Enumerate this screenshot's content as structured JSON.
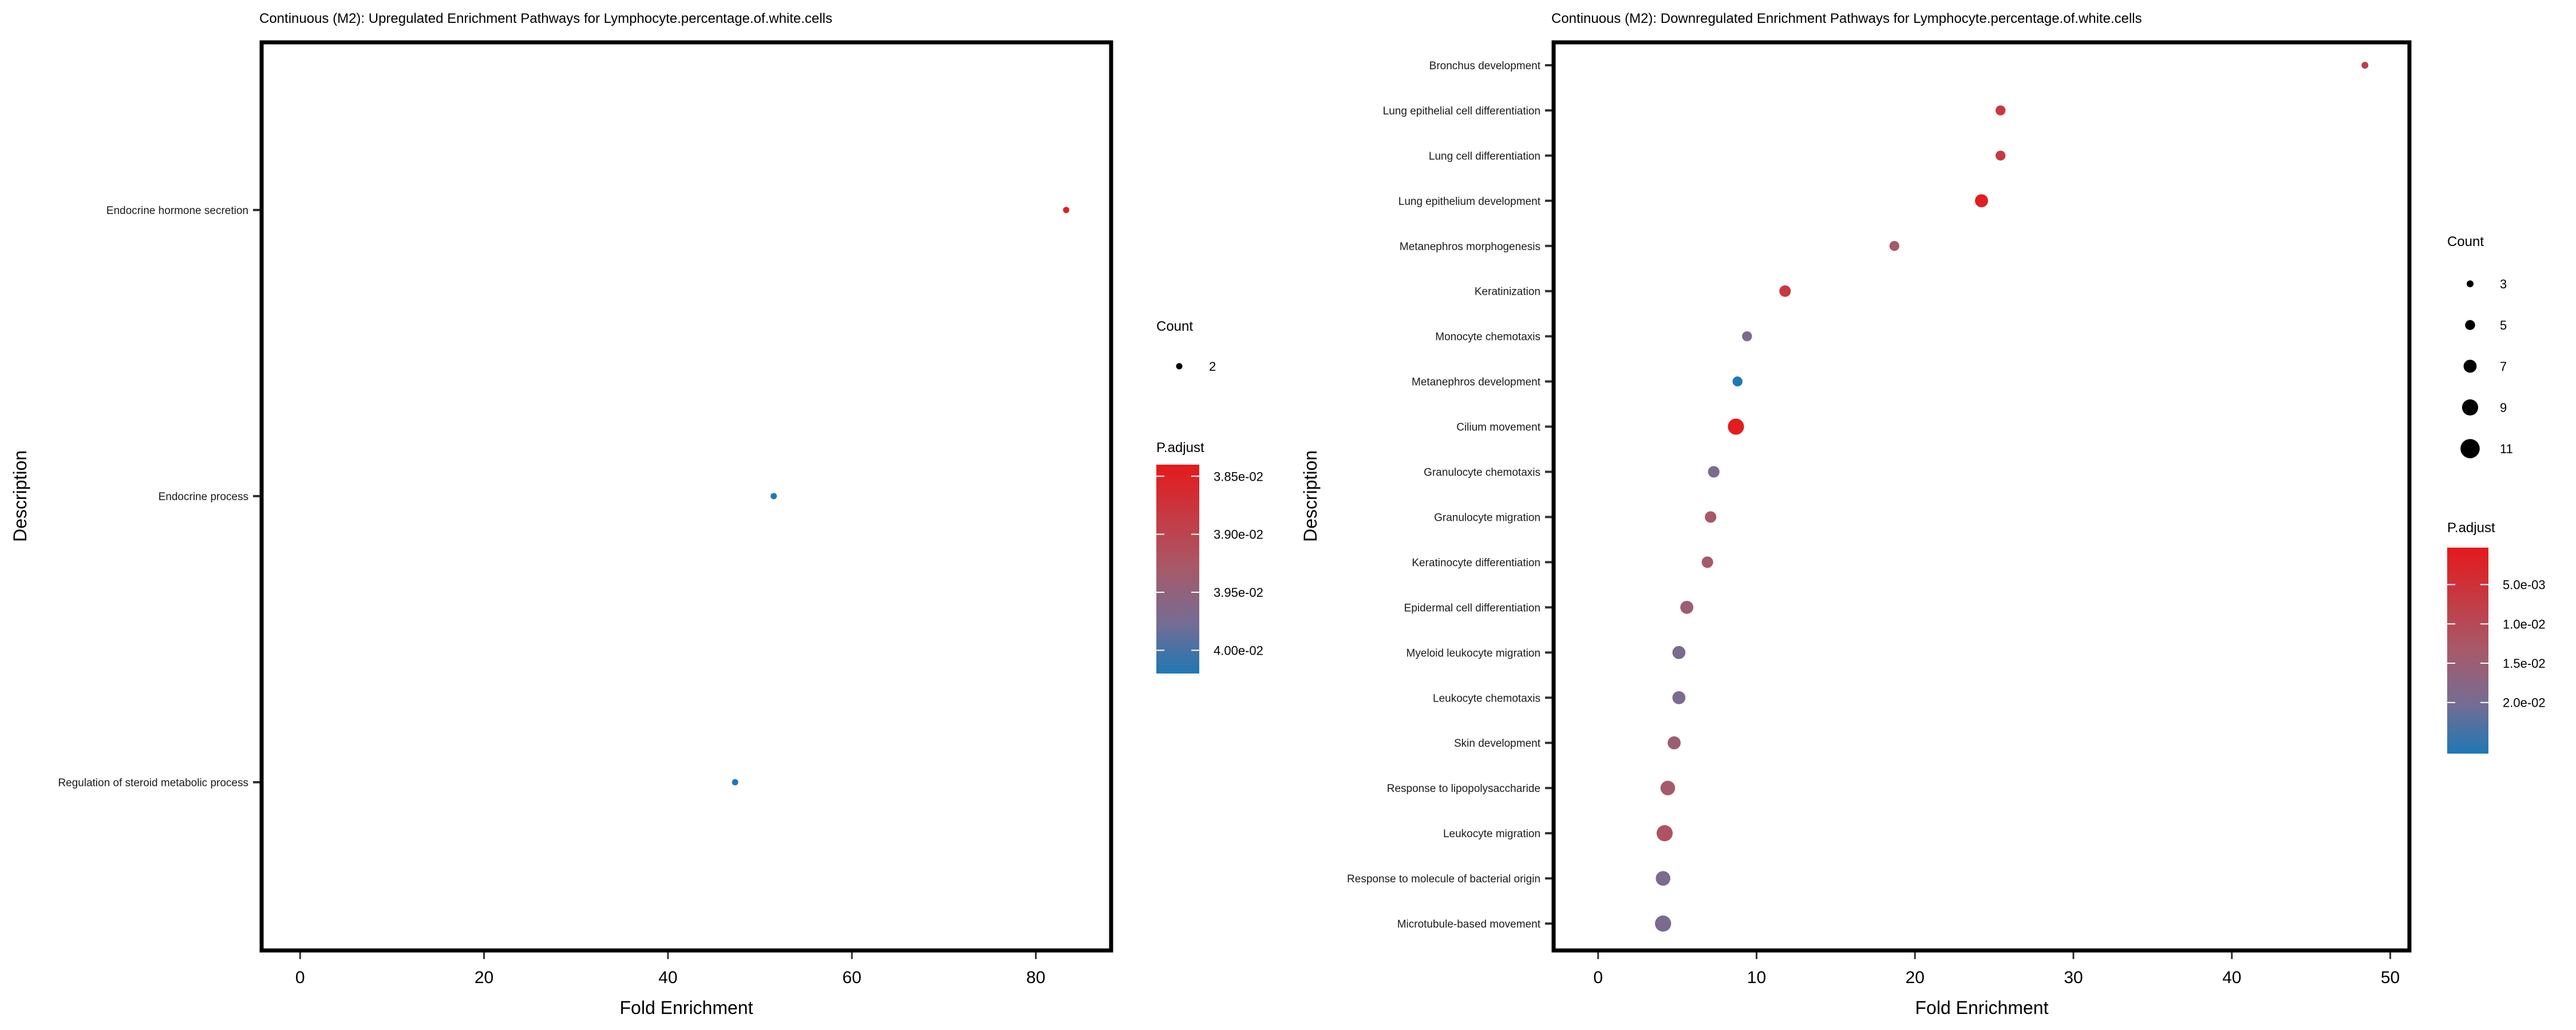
{
  "chart_data": [
    {
      "type": "scatter",
      "title": "Continuous (M2): Upregulated Enrichment Pathways for Lymphocyte.percentage.of.white.cells",
      "xlabel": "Fold Enrichment",
      "ylabel": "Description",
      "xlim": [
        -4,
        88
      ],
      "xticks": [
        0,
        20,
        40,
        60,
        80
      ],
      "xtick_labels": [
        "0",
        "20",
        "40",
        "60",
        "80"
      ],
      "grid": false,
      "categories": [
        "Endocrine hormone secretion",
        "Endocrine process",
        "Regulation of steroid metabolic process"
      ],
      "points": [
        {
          "description": "Endocrine hormone secretion",
          "fold_enrichment": 83.3,
          "count": 2,
          "p_adjust": 0.0385
        },
        {
          "description": "Endocrine process",
          "fold_enrichment": 51.5,
          "count": 2,
          "p_adjust": 0.0402
        },
        {
          "description": "Regulation of steroid metabolic process",
          "fold_enrichment": 47.3,
          "count": 2,
          "p_adjust": 0.0402
        }
      ],
      "size_legend": {
        "title": "Count",
        "values": [
          2
        ],
        "labels": [
          "2"
        ],
        "range": [
          2,
          2
        ]
      },
      "color_legend": {
        "title": "P.adjust",
        "range": [
          0.0384,
          0.0402
        ],
        "ticks": [
          0.0385,
          0.039,
          0.0395,
          0.04
        ],
        "tick_labels": [
          "3.85e-02",
          "3.90e-02",
          "3.95e-02",
          "4.00e-02"
        ],
        "low_color": "#e41a1c",
        "high_color": "#1f78b4"
      },
      "legend_position": "right"
    },
    {
      "type": "scatter",
      "title": "Continuous (M2): Downregulated Enrichment Pathways for Lymphocyte.percentage.of.white.cells",
      "xlabel": "Fold Enrichment",
      "ylabel": "Description",
      "xlim": [
        -2.7,
        51.1
      ],
      "xticks": [
        0,
        10,
        20,
        30,
        40,
        50
      ],
      "xtick_labels": [
        "0",
        "10",
        "20",
        "30",
        "40",
        "50"
      ],
      "grid": false,
      "categories": [
        "Bronchus development",
        "Lung epithelial cell differentiation",
        "Lung cell differentiation",
        "Lung epithelium development",
        "Metanephros morphogenesis",
        "Keratinization",
        "Monocyte chemotaxis",
        "Metanephros development",
        "Cilium movement",
        "Granulocyte chemotaxis",
        "Granulocyte migration",
        "Keratinocyte differentiation",
        "Epidermal cell differentiation",
        "Myeloid leukocyte migration",
        "Leukocyte chemotaxis",
        "Skin development",
        "Response to lipopolysaccharide",
        "Leukocyte migration",
        "Response to molecule of bacterial origin",
        "Microtubule-based movement"
      ],
      "points": [
        {
          "description": "Bronchus development",
          "fold_enrichment": 48.4,
          "count": 3,
          "p_adjust": 0.0075
        },
        {
          "description": "Lung epithelial cell differentiation",
          "fold_enrichment": 25.4,
          "count": 5,
          "p_adjust": 0.0065
        },
        {
          "description": "Lung cell differentiation",
          "fold_enrichment": 25.4,
          "count": 5,
          "p_adjust": 0.0065
        },
        {
          "description": "Lung epithelium development",
          "fold_enrichment": 24.2,
          "count": 7,
          "p_adjust": 0.0008
        },
        {
          "description": "Metanephros morphogenesis",
          "fold_enrichment": 18.7,
          "count": 5,
          "p_adjust": 0.0135
        },
        {
          "description": "Keratinization",
          "fold_enrichment": 11.8,
          "count": 6,
          "p_adjust": 0.0065
        },
        {
          "description": "Monocyte chemotaxis",
          "fold_enrichment": 9.4,
          "count": 5,
          "p_adjust": 0.0195
        },
        {
          "description": "Metanephros development",
          "fold_enrichment": 8.8,
          "count": 5,
          "p_adjust": 0.0265
        },
        {
          "description": "Cilium movement",
          "fold_enrichment": 8.7,
          "count": 9,
          "p_adjust": 0.0008
        },
        {
          "description": "Granulocyte chemotaxis",
          "fold_enrichment": 7.3,
          "count": 6,
          "p_adjust": 0.0195
        },
        {
          "description": "Granulocyte migration",
          "fold_enrichment": 7.1,
          "count": 6,
          "p_adjust": 0.013
        },
        {
          "description": "Keratinocyte differentiation",
          "fold_enrichment": 6.9,
          "count": 6,
          "p_adjust": 0.0135
        },
        {
          "description": "Epidermal cell differentiation",
          "fold_enrichment": 5.6,
          "count": 7,
          "p_adjust": 0.015
        },
        {
          "description": "Myeloid leukocyte migration",
          "fold_enrichment": 5.1,
          "count": 7,
          "p_adjust": 0.0195
        },
        {
          "description": "Leukocyte chemotaxis",
          "fold_enrichment": 5.1,
          "count": 7,
          "p_adjust": 0.0195
        },
        {
          "description": "Skin development",
          "fold_enrichment": 4.8,
          "count": 7,
          "p_adjust": 0.015
        },
        {
          "description": "Response to lipopolysaccharide",
          "fold_enrichment": 4.4,
          "count": 8,
          "p_adjust": 0.0135
        },
        {
          "description": "Leukocyte migration",
          "fold_enrichment": 4.2,
          "count": 9,
          "p_adjust": 0.012
        },
        {
          "description": "Response to molecule of bacterial origin",
          "fold_enrichment": 4.1,
          "count": 8,
          "p_adjust": 0.0195
        },
        {
          "description": "Microtubule-based movement",
          "fold_enrichment": 4.1,
          "count": 9,
          "p_adjust": 0.0195
        }
      ],
      "size_legend": {
        "title": "Count",
        "values": [
          3,
          5,
          7,
          9,
          11
        ],
        "labels": [
          "3",
          "5",
          "7",
          "9",
          "11"
        ],
        "range": [
          3,
          11
        ]
      },
      "color_legend": {
        "title": "P.adjust",
        "range": [
          0.0003,
          0.0265
        ],
        "ticks": [
          0.005,
          0.01,
          0.015,
          0.02
        ],
        "tick_labels": [
          "5.0e-03",
          "1.0e-02",
          "1.5e-02",
          "2.0e-02"
        ],
        "low_color": "#e41a1c",
        "high_color": "#1f78b4"
      },
      "legend_position": "right"
    }
  ]
}
